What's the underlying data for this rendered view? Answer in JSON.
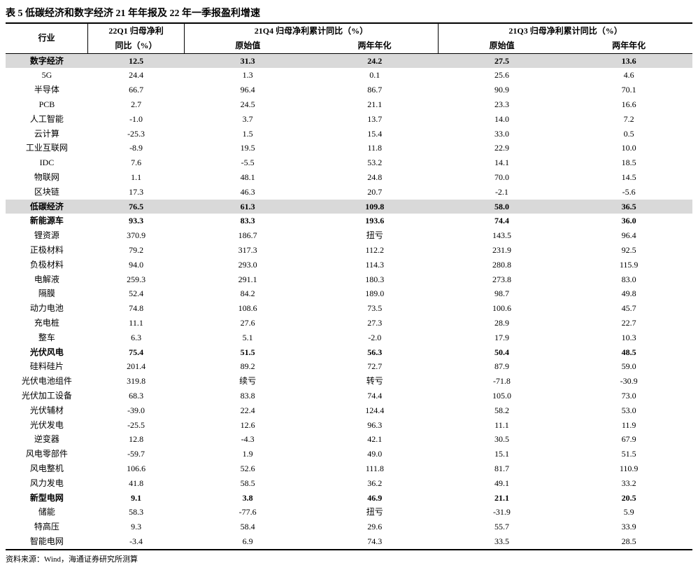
{
  "title": "表 5 低碳经济和数字经济 21 年年报及 22 年一季报盈利增速",
  "header": {
    "industry": "行业",
    "q1": {
      "line1": "22Q1 归母净利",
      "line2": "同比（%）"
    },
    "q4": {
      "title": "21Q4 归母净利累计同比（%）",
      "sub1": "原始值",
      "sub2": "两年年化"
    },
    "q3": {
      "title": "21Q3 归母净利累计同比（%）",
      "sub1": "原始值",
      "sub2": "两年年化"
    }
  },
  "rows": [
    {
      "type": "section",
      "name": "数字经济",
      "v": [
        "12.5",
        "31.3",
        "24.2",
        "27.5",
        "13.6"
      ]
    },
    {
      "type": "data",
      "name": "5G",
      "v": [
        "24.4",
        "1.3",
        "0.1",
        "25.6",
        "4.6"
      ]
    },
    {
      "type": "data",
      "name": "半导体",
      "v": [
        "66.7",
        "96.4",
        "86.7",
        "90.9",
        "70.1"
      ]
    },
    {
      "type": "data",
      "name": "PCB",
      "v": [
        "2.7",
        "24.5",
        "21.1",
        "23.3",
        "16.6"
      ]
    },
    {
      "type": "data",
      "name": "人工智能",
      "v": [
        "-1.0",
        "3.7",
        "13.7",
        "14.0",
        "7.2"
      ]
    },
    {
      "type": "data",
      "name": "云计算",
      "v": [
        "-25.3",
        "1.5",
        "15.4",
        "33.0",
        "0.5"
      ]
    },
    {
      "type": "data",
      "name": "工业互联网",
      "v": [
        "-8.9",
        "19.5",
        "11.8",
        "22.9",
        "10.0"
      ]
    },
    {
      "type": "data",
      "name": "IDC",
      "v": [
        "7.6",
        "-5.5",
        "53.2",
        "14.1",
        "18.5"
      ]
    },
    {
      "type": "data",
      "name": "物联网",
      "v": [
        "1.1",
        "48.1",
        "24.8",
        "70.0",
        "14.5"
      ]
    },
    {
      "type": "data",
      "name": "区块链",
      "v": [
        "17.3",
        "46.3",
        "20.7",
        "-2.1",
        "-5.6"
      ]
    },
    {
      "type": "section",
      "name": "低碳经济",
      "v": [
        "76.5",
        "61.3",
        "109.8",
        "58.0",
        "36.5"
      ]
    },
    {
      "type": "subsection",
      "name": "新能源车",
      "v": [
        "93.3",
        "83.3",
        "193.6",
        "74.4",
        "36.0"
      ]
    },
    {
      "type": "data",
      "name": "锂资源",
      "v": [
        "370.9",
        "186.7",
        "扭亏",
        "143.5",
        "96.4"
      ]
    },
    {
      "type": "data",
      "name": "正极材料",
      "v": [
        "79.2",
        "317.3",
        "112.2",
        "231.9",
        "92.5"
      ]
    },
    {
      "type": "data",
      "name": "负极材料",
      "v": [
        "94.0",
        "293.0",
        "114.3",
        "280.8",
        "115.9"
      ]
    },
    {
      "type": "data",
      "name": "电解液",
      "v": [
        "259.3",
        "291.1",
        "180.3",
        "273.8",
        "83.0"
      ]
    },
    {
      "type": "data",
      "name": "隔膜",
      "v": [
        "52.4",
        "84.2",
        "189.0",
        "98.7",
        "49.8"
      ]
    },
    {
      "type": "data",
      "name": "动力电池",
      "v": [
        "74.8",
        "108.6",
        "73.5",
        "100.6",
        "45.7"
      ]
    },
    {
      "type": "data",
      "name": "充电桩",
      "v": [
        "11.1",
        "27.6",
        "27.3",
        "28.9",
        "22.7"
      ]
    },
    {
      "type": "data",
      "name": "整车",
      "v": [
        "6.3",
        "5.1",
        "-2.0",
        "17.9",
        "10.3"
      ]
    },
    {
      "type": "subsection",
      "name": "光伏风电",
      "v": [
        "75.4",
        "51.5",
        "56.3",
        "50.4",
        "48.5"
      ]
    },
    {
      "type": "data",
      "name": "硅料硅片",
      "v": [
        "201.4",
        "89.2",
        "72.7",
        "87.9",
        "59.0"
      ]
    },
    {
      "type": "data",
      "name": "光伏电池组件",
      "v": [
        "319.8",
        "续亏",
        "转亏",
        "-71.8",
        "-30.9"
      ]
    },
    {
      "type": "data",
      "name": "光伏加工设备",
      "v": [
        "68.3",
        "83.8",
        "74.4",
        "105.0",
        "73.0"
      ]
    },
    {
      "type": "data",
      "name": "光伏辅材",
      "v": [
        "-39.0",
        "22.4",
        "124.4",
        "58.2",
        "53.0"
      ]
    },
    {
      "type": "data",
      "name": "光伏发电",
      "v": [
        "-25.5",
        "12.6",
        "96.3",
        "11.1",
        "11.9"
      ]
    },
    {
      "type": "data",
      "name": "逆变器",
      "v": [
        "12.8",
        "-4.3",
        "42.1",
        "30.5",
        "67.9"
      ]
    },
    {
      "type": "data",
      "name": "风电零部件",
      "v": [
        "-59.7",
        "1.9",
        "49.0",
        "15.1",
        "51.5"
      ]
    },
    {
      "type": "data",
      "name": "风电整机",
      "v": [
        "106.6",
        "52.6",
        "111.8",
        "81.7",
        "110.9"
      ]
    },
    {
      "type": "data",
      "name": "风力发电",
      "v": [
        "41.8",
        "58.5",
        "36.2",
        "49.1",
        "33.2"
      ]
    },
    {
      "type": "subsection",
      "name": "新型电网",
      "v": [
        "9.1",
        "3.8",
        "46.9",
        "21.1",
        "20.5"
      ]
    },
    {
      "type": "data",
      "name": "储能",
      "v": [
        "58.3",
        "-77.6",
        "扭亏",
        "-31.9",
        "5.9"
      ]
    },
    {
      "type": "data",
      "name": "特高压",
      "v": [
        "9.3",
        "58.4",
        "29.6",
        "55.7",
        "33.9"
      ]
    },
    {
      "type": "data",
      "name": "智能电网",
      "v": [
        "-3.4",
        "6.9",
        "74.3",
        "33.5",
        "28.5"
      ]
    }
  ],
  "source": "资料来源：Wind，海通证券研究所测算",
  "styling": {
    "section_bg": "#d9d9d9",
    "border_color": "#000000",
    "font_size_body": 12,
    "font_size_title": 14
  }
}
